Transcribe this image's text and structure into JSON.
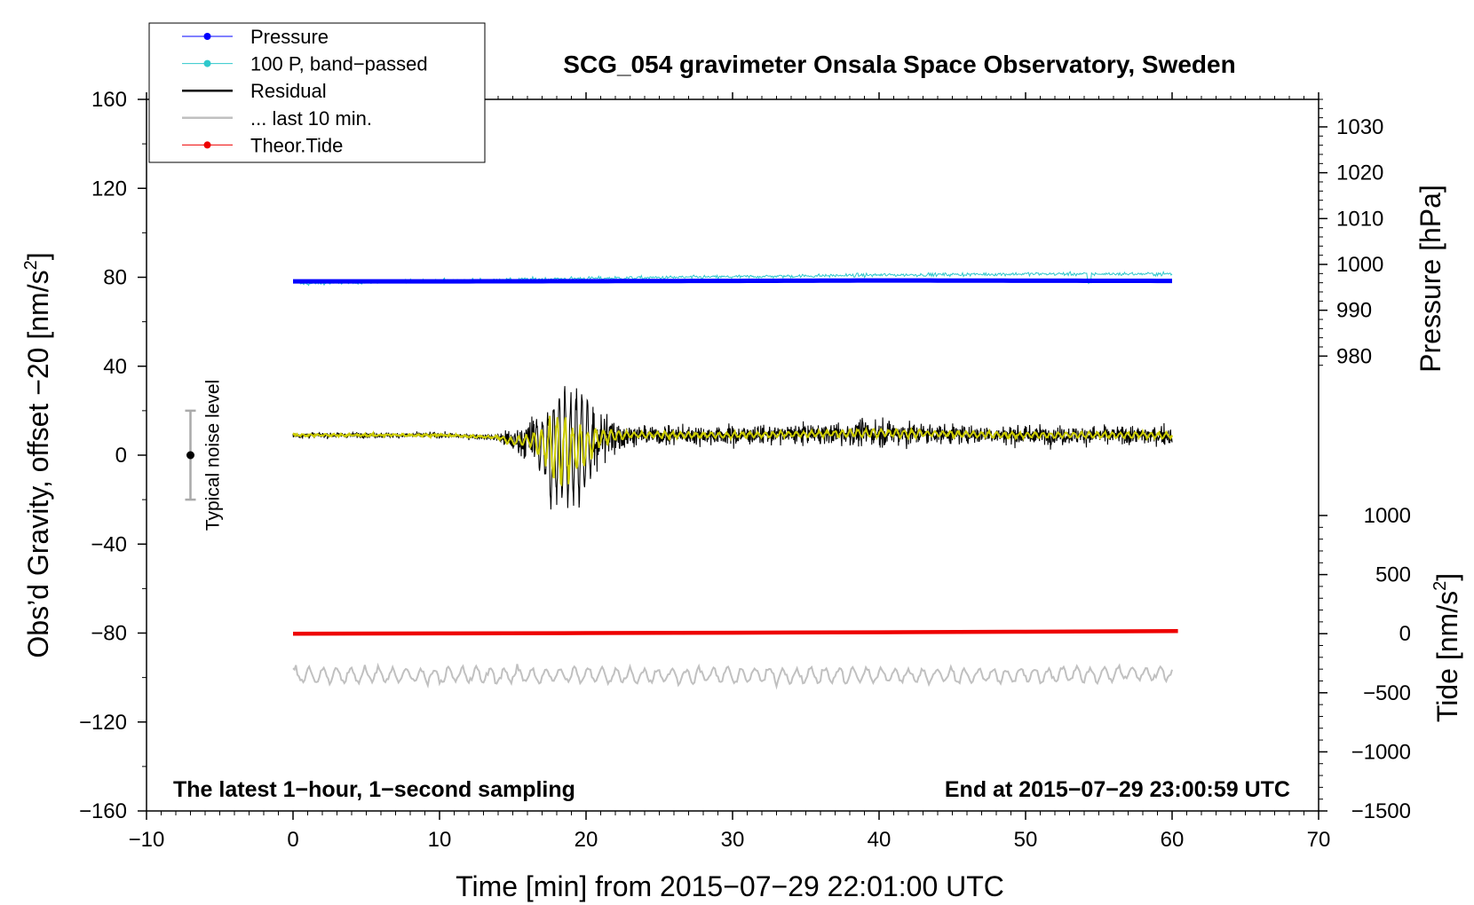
{
  "chart_data": {
    "type": "line",
    "title": "SCG_054 gravimeter Onsala Space Observatory, Sweden",
    "xlabel": "Time [min] from 2015−07−29 22:01:00 UTC",
    "ylabel_left_main": "Obs’d Gravity, offset −20 [nm/s",
    "ylabel_left_sup": "2",
    "ylabel_left_end": "]",
    "ylabel_right_top": "Pressure [hPa]",
    "ylabel_right_bottom_main": "Tide [nm/s",
    "ylabel_right_bottom_sup": "2",
    "ylabel_right_bottom_end": "]",
    "xlim": [
      -10,
      70
    ],
    "ylim": [
      -160,
      160
    ],
    "x_ticks": [
      {
        "value": -10,
        "label": "−10"
      },
      {
        "value": 0,
        "label": "0"
      },
      {
        "value": 10,
        "label": "10"
      },
      {
        "value": 20,
        "label": "20"
      },
      {
        "value": 30,
        "label": "30"
      },
      {
        "value": 40,
        "label": "40"
      },
      {
        "value": 50,
        "label": "50"
      },
      {
        "value": 60,
        "label": "60"
      },
      {
        "value": 70,
        "label": "70"
      }
    ],
    "y_ticks": [
      {
        "value": 160,
        "label": "160"
      },
      {
        "value": 120,
        "label": "120"
      },
      {
        "value": 80,
        "label": "80"
      },
      {
        "value": 40,
        "label": "40"
      },
      {
        "value": 0,
        "label": "0"
      },
      {
        "value": -40,
        "label": "−40"
      },
      {
        "value": -80,
        "label": "−80"
      },
      {
        "value": -120,
        "label": "−120"
      },
      {
        "value": -160,
        "label": "−160"
      }
    ],
    "pressure_axis": {
      "range": [
        976.7,
        1038.0
      ],
      "ticks": [
        {
          "value": 1030,
          "label": "1030"
        },
        {
          "value": 1020,
          "label": "1020"
        },
        {
          "value": 1010,
          "label": "1010"
        },
        {
          "value": 1000,
          "label": "1000"
        },
        {
          "value": 990,
          "label": "990"
        },
        {
          "value": 980,
          "label": "980"
        }
      ]
    },
    "tide_axis": {
      "range": [
        -1500,
        1000
      ],
      "ticks": [
        {
          "value": 1000,
          "label": "1000"
        },
        {
          "value": 500,
          "label": "500"
        },
        {
          "value": 0,
          "label": "0"
        },
        {
          "value": -500,
          "label": "−500"
        },
        {
          "value": -1000,
          "label": "−1000"
        },
        {
          "value": -1500,
          "label": "−1500"
        }
      ]
    },
    "series": [
      {
        "name": "Pressure",
        "color": "#0000ff",
        "axis": "pressure",
        "x": [
          0,
          10,
          20,
          30,
          35,
          40,
          50,
          60
        ],
        "values": [
          996.3,
          996.3,
          996.35,
          996.4,
          996.45,
          996.5,
          996.45,
          996.4
        ]
      },
      {
        "name": "100 P, band−passed",
        "color": "#2ec8cc",
        "axis": "left",
        "x": [
          0,
          10,
          20,
          30,
          40,
          50,
          60
        ],
        "values": [
          77,
          78.5,
          79.5,
          80.2,
          81,
          81.5,
          81.5
        ]
      },
      {
        "name": "Residual",
        "color": "#000000",
        "axis": "left",
        "x": [
          0,
          10,
          14,
          15,
          16,
          17,
          18,
          19,
          20,
          21,
          22,
          25,
          30,
          40,
          50,
          60
        ],
        "values": [
          9,
          9,
          8,
          6,
          7,
          5,
          2,
          3,
          4,
          8,
          9,
          9,
          9,
          10,
          9,
          9
        ]
      },
      {
        "name": "... last 10 min.",
        "color": "#c0c0c0",
        "axis": "left",
        "x": [
          0,
          10,
          20,
          30,
          40,
          50,
          60
        ],
        "values": [
          -99,
          -99,
          -99,
          -99,
          -99,
          -99,
          -98
        ]
      },
      {
        "name": "Theor.Tide",
        "color": "#ee0000",
        "axis": "tide",
        "x": [
          0,
          10,
          20,
          30,
          40,
          50,
          60.4
        ],
        "values": [
          0,
          2,
          5,
          8,
          12,
          17,
          22
        ]
      }
    ],
    "yellow_trace": {
      "color": "#cccc00"
    },
    "noise_marker": {
      "x": -7,
      "center": 0,
      "low": -20,
      "high": 20,
      "label": "Typical noise level"
    },
    "annotations": {
      "bottom_left": "The latest 1−hour, 1−second sampling",
      "bottom_right": "End at 2015−07−29 23:00:59 UTC"
    },
    "legend_position": "top-left",
    "grid": false
  }
}
